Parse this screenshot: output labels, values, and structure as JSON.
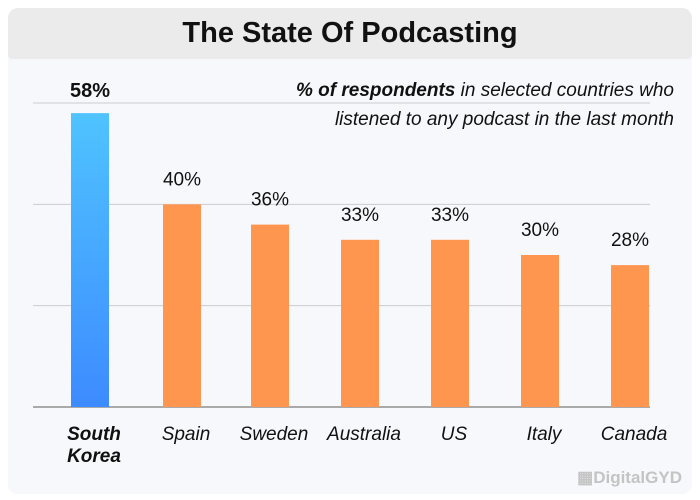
{
  "chart_data": {
    "type": "bar",
    "title": "The State Of Podcasting",
    "subtitle_bold": "% of respondents",
    "subtitle_rest": " in selected countries who",
    "subtitle_line2": "listened to any podcast in the last month",
    "categories": [
      "South Korea",
      "Spain",
      "Sweden",
      "Australia",
      "US",
      "Italy",
      "Canada"
    ],
    "values": [
      58,
      40,
      36,
      33,
      33,
      30,
      28
    ],
    "data_labels": [
      "58%",
      "40%",
      "36%",
      "33%",
      "33%",
      "30%",
      "28%"
    ],
    "highlight_index": 0,
    "colors": {
      "highlight_top": "#4fc3ff",
      "highlight_bottom": "#3d8bff",
      "bar": "#ff9650",
      "grid": "#cccccc"
    },
    "ylim": [
      0,
      60
    ],
    "gridlines": [
      0,
      20,
      40,
      60
    ],
    "grid": true,
    "legend": "none"
  },
  "watermark": "DigitalGYD"
}
